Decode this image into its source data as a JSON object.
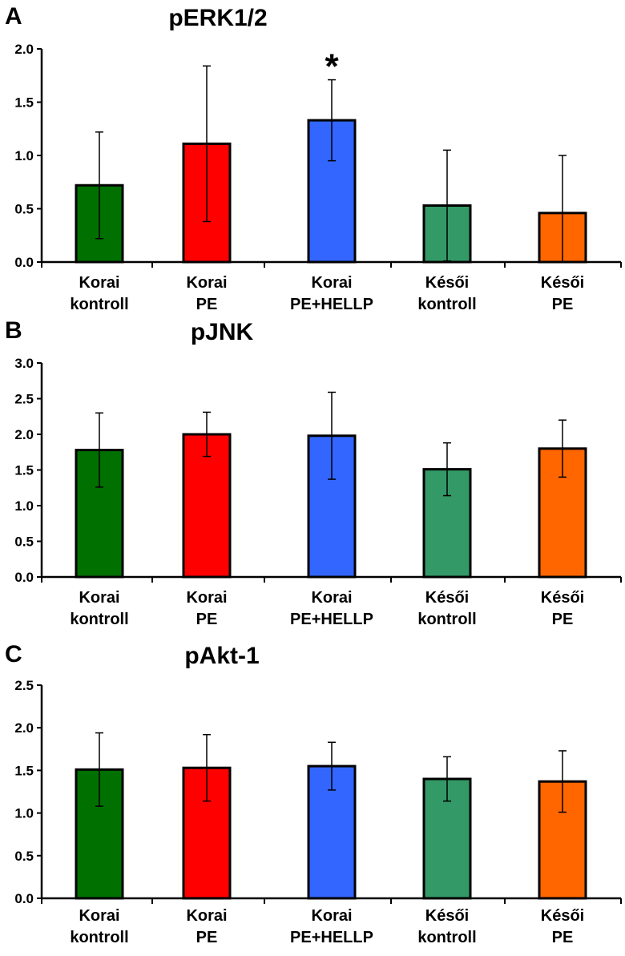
{
  "chart_data": [
    {
      "type": "bar",
      "panel": "A",
      "title": "pERK1/2",
      "categories": [
        [
          "Korai",
          "kontroll"
        ],
        [
          "Korai",
          "PE"
        ],
        [
          "Korai",
          "PE+HELLP"
        ],
        [
          "Késői",
          "kontroll"
        ],
        [
          "Késői",
          "PE"
        ]
      ],
      "values": [
        0.72,
        1.11,
        1.33,
        0.53,
        0.46
      ],
      "errors": [
        0.5,
        0.73,
        0.38,
        0.52,
        0.54
      ],
      "colors": [
        "#007000",
        "#ff0000",
        "#3366ff",
        "#339966",
        "#ff6600"
      ],
      "annotations": [
        {
          "category_index": 2,
          "text": "*"
        }
      ],
      "ylim": [
        0,
        2.0
      ],
      "yticks": [
        "0.0",
        "0.5",
        "1.0",
        "1.5",
        "2.0"
      ],
      "xlabel": "",
      "ylabel": ""
    },
    {
      "type": "bar",
      "panel": "B",
      "title": "pJNK",
      "categories": [
        [
          "Korai",
          "kontroll"
        ],
        [
          "Korai",
          "PE"
        ],
        [
          "Korai",
          "PE+HELLP"
        ],
        [
          "Késői",
          "kontroll"
        ],
        [
          "Késői",
          "PE"
        ]
      ],
      "values": [
        1.78,
        2.0,
        1.98,
        1.51,
        1.8
      ],
      "errors": [
        0.52,
        0.31,
        0.61,
        0.37,
        0.4
      ],
      "colors": [
        "#007000",
        "#ff0000",
        "#3366ff",
        "#339966",
        "#ff6600"
      ],
      "annotations": [],
      "ylim": [
        0,
        3.0
      ],
      "yticks": [
        "0.0",
        "0.5",
        "1.0",
        "1.5",
        "2.0",
        "2.5",
        "3.0"
      ],
      "xlabel": "",
      "ylabel": ""
    },
    {
      "type": "bar",
      "panel": "C",
      "title": "pAkt-1",
      "categories": [
        [
          "Korai",
          "kontroll"
        ],
        [
          "Korai",
          "PE"
        ],
        [
          "Korai",
          "PE+HELLP"
        ],
        [
          "Késői",
          "kontroll"
        ],
        [
          "Késői",
          "PE"
        ]
      ],
      "values": [
        1.51,
        1.53,
        1.55,
        1.4,
        1.37
      ],
      "errors": [
        0.43,
        0.39,
        0.28,
        0.26,
        0.36
      ],
      "colors": [
        "#007000",
        "#ff0000",
        "#3366ff",
        "#339966",
        "#ff6600"
      ],
      "annotations": [],
      "ylim": [
        0,
        2.5
      ],
      "yticks": [
        "0.0",
        "0.5",
        "1.0",
        "1.5",
        "2.0",
        "2.5"
      ],
      "xlabel": "",
      "ylabel": ""
    }
  ]
}
